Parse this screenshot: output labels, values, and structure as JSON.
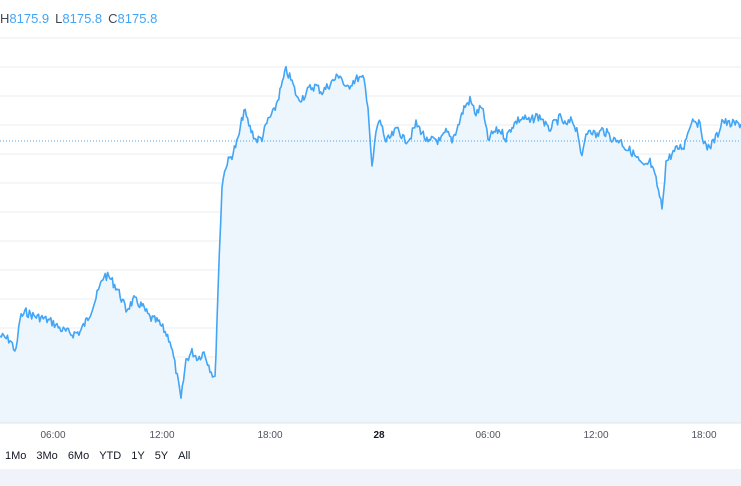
{
  "legend": {
    "h_label": "H",
    "h_value": "8175.9",
    "l_label": "L",
    "l_value": "8175.8",
    "c_label": "C",
    "c_value": "8175.8"
  },
  "colors": {
    "line": "#42a5f5",
    "fill": "#eef6fd",
    "grid": "#e8ecf2",
    "dotted": "#42a5f5"
  },
  "range_buttons": [
    "1Mo",
    "3Mo",
    "6Mo",
    "YTD",
    "1Y",
    "5Y",
    "All"
  ],
  "chart_data": {
    "type": "line",
    "x_tick_labels": [
      "06:00",
      "12:00",
      "18:00",
      "28",
      "06:00",
      "12:00",
      "18:00"
    ],
    "current_value": 8175.8
  }
}
